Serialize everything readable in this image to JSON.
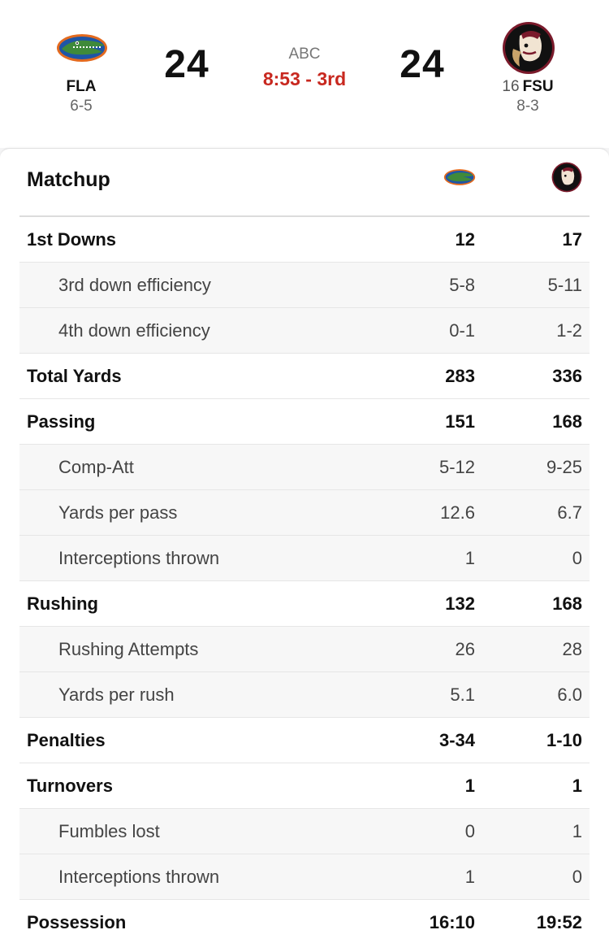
{
  "header": {
    "away": {
      "abbr": "FLA",
      "record": "6-5",
      "score": "24",
      "logo": "gator-logo-icon",
      "color": "#1e55a6"
    },
    "home": {
      "rank": "16",
      "abbr": "FSU",
      "record": "8-3",
      "score": "24",
      "logo": "seminole-logo-icon",
      "color": "#7a1a2b"
    },
    "network": "ABC",
    "clock": "8:53 - 3rd",
    "clock_color": "#c8281f"
  },
  "matchup": {
    "title": "Matchup",
    "rows": [
      {
        "label": "1st Downs",
        "fla": "12",
        "fsu": "17",
        "type": "main"
      },
      {
        "label": "3rd down efficiency",
        "fla": "5-8",
        "fsu": "5-11",
        "type": "sub"
      },
      {
        "label": "4th down efficiency",
        "fla": "0-1",
        "fsu": "1-2",
        "type": "sub"
      },
      {
        "label": "Total Yards",
        "fla": "283",
        "fsu": "336",
        "type": "main"
      },
      {
        "label": "Passing",
        "fla": "151",
        "fsu": "168",
        "type": "main"
      },
      {
        "label": "Comp-Att",
        "fla": "5-12",
        "fsu": "9-25",
        "type": "sub"
      },
      {
        "label": "Yards per pass",
        "fla": "12.6",
        "fsu": "6.7",
        "type": "sub"
      },
      {
        "label": "Interceptions thrown",
        "fla": "1",
        "fsu": "0",
        "type": "sub"
      },
      {
        "label": "Rushing",
        "fla": "132",
        "fsu": "168",
        "type": "main"
      },
      {
        "label": "Rushing Attempts",
        "fla": "26",
        "fsu": "28",
        "type": "sub"
      },
      {
        "label": "Yards per rush",
        "fla": "5.1",
        "fsu": "6.0",
        "type": "sub"
      },
      {
        "label": "Penalties",
        "fla": "3-34",
        "fsu": "1-10",
        "type": "main"
      },
      {
        "label": "Turnovers",
        "fla": "1",
        "fsu": "1",
        "type": "main"
      },
      {
        "label": "Fumbles lost",
        "fla": "0",
        "fsu": "1",
        "type": "sub"
      },
      {
        "label": "Interceptions thrown",
        "fla": "1",
        "fsu": "0",
        "type": "sub"
      },
      {
        "label": "Possession",
        "fla": "16:10",
        "fsu": "19:52",
        "type": "main"
      }
    ]
  }
}
